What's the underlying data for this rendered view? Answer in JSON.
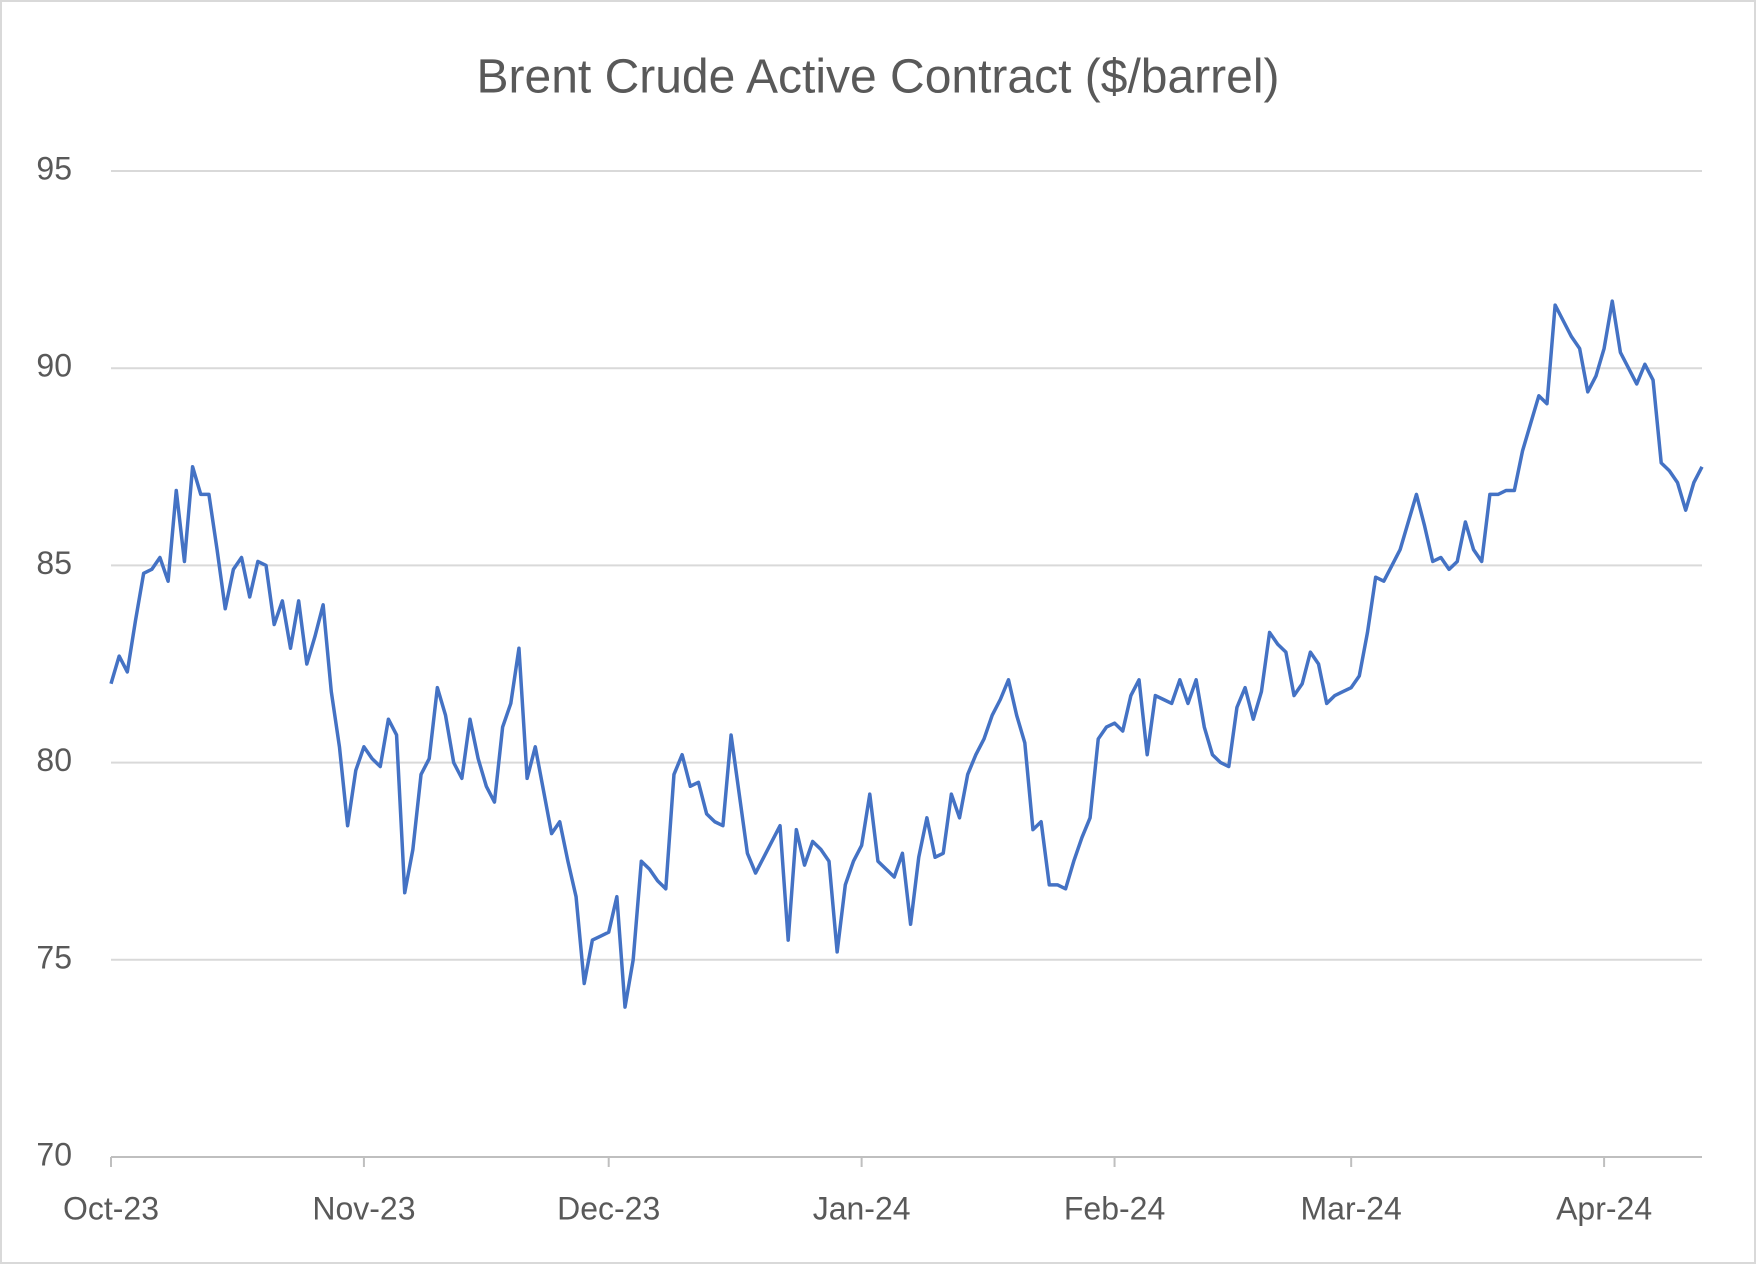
{
  "chart_data": {
    "type": "line",
    "title": "Brent Crude Active Contract ($/barrel)",
    "categories": [
      "Oct-23",
      null,
      null,
      null,
      null,
      null,
      null,
      null,
      null,
      null,
      null,
      null,
      null,
      null,
      null,
      null,
      null,
      null,
      null,
      null,
      null,
      null,
      null,
      null,
      null,
      null,
      null,
      null,
      null,
      null,
      null,
      "Nov-23",
      null,
      null,
      null,
      null,
      null,
      null,
      null,
      null,
      null,
      null,
      null,
      null,
      null,
      null,
      null,
      null,
      null,
      null,
      null,
      null,
      null,
      null,
      null,
      null,
      null,
      null,
      null,
      null,
      null,
      "Dec-23",
      null,
      null,
      null,
      null,
      null,
      null,
      null,
      null,
      null,
      null,
      null,
      null,
      null,
      null,
      null,
      null,
      null,
      null,
      null,
      null,
      null,
      null,
      null,
      null,
      null,
      null,
      null,
      null,
      null,
      null,
      "Jan-24",
      null,
      null,
      null,
      null,
      null,
      null,
      null,
      null,
      null,
      null,
      null,
      null,
      null,
      null,
      null,
      null,
      null,
      null,
      null,
      null,
      null,
      null,
      null,
      null,
      null,
      null,
      null,
      null,
      null,
      null,
      "Feb-24",
      null,
      null,
      null,
      null,
      null,
      null,
      null,
      null,
      null,
      null,
      null,
      null,
      null,
      null,
      null,
      null,
      null,
      null,
      null,
      null,
      null,
      null,
      null,
      null,
      null,
      null,
      null,
      null,
      "Mar-24",
      null,
      null,
      null,
      null,
      null,
      null,
      null,
      null,
      null,
      null,
      null,
      null,
      null,
      null,
      null,
      null,
      null,
      null,
      null,
      null,
      null,
      null,
      null,
      null,
      null,
      null,
      null,
      null,
      null,
      null,
      "Apr-24",
      null,
      null,
      null,
      null,
      null,
      null,
      null,
      null,
      null,
      null,
      null,
      null
    ],
    "values": [
      82.0,
      82.7,
      82.3,
      83.6,
      84.8,
      84.9,
      85.2,
      84.6,
      86.9,
      85.1,
      87.5,
      86.8,
      86.8,
      85.4,
      83.9,
      84.9,
      85.2,
      84.2,
      85.1,
      85.0,
      83.5,
      84.1,
      82.9,
      84.1,
      82.5,
      83.2,
      84.0,
      81.8,
      80.4,
      78.4,
      79.8,
      80.4,
      80.1,
      79.9,
      81.1,
      80.7,
      76.7,
      77.8,
      79.7,
      80.1,
      81.9,
      81.2,
      80.0,
      79.6,
      81.1,
      80.1,
      79.4,
      79.0,
      80.9,
      81.5,
      82.9,
      79.6,
      80.4,
      79.3,
      78.2,
      78.5,
      77.5,
      76.6,
      74.4,
      75.5,
      75.6,
      75.7,
      76.6,
      73.8,
      75.0,
      77.5,
      77.3,
      77.0,
      76.8,
      79.7,
      80.2,
      79.4,
      79.5,
      78.7,
      78.5,
      78.4,
      80.7,
      79.2,
      77.7,
      77.2,
      77.6,
      78.0,
      78.4,
      75.5,
      78.3,
      77.4,
      78.0,
      77.8,
      77.5,
      75.2,
      76.9,
      77.5,
      77.9,
      79.2,
      77.5,
      77.3,
      77.1,
      77.7,
      75.9,
      77.6,
      78.6,
      77.6,
      77.7,
      79.2,
      78.6,
      79.7,
      80.2,
      80.6,
      81.2,
      81.6,
      82.1,
      81.2,
      80.5,
      78.3,
      78.5,
      76.9,
      76.9,
      76.8,
      77.5,
      78.1,
      78.6,
      80.6,
      80.9,
      81.0,
      80.8,
      81.7,
      82.1,
      80.2,
      81.7,
      81.6,
      81.5,
      82.1,
      81.5,
      82.1,
      80.9,
      80.2,
      80.0,
      79.9,
      81.4,
      81.9,
      81.1,
      81.8,
      83.3,
      83.0,
      82.8,
      81.7,
      82.0,
      82.8,
      82.5,
      81.5,
      81.7,
      81.8,
      81.9,
      82.2,
      83.3,
      84.7,
      84.6,
      85.0,
      85.4,
      86.1,
      86.8,
      86.0,
      85.1,
      85.2,
      84.9,
      85.1,
      86.1,
      85.4,
      85.1,
      86.8,
      86.8,
      86.9,
      86.9,
      87.9,
      88.6,
      89.3,
      89.1,
      91.6,
      91.2,
      90.8,
      90.5,
      89.4,
      89.8,
      90.5,
      91.7,
      90.4,
      90.0,
      89.6,
      90.1,
      89.7,
      87.6,
      87.4,
      87.1,
      86.4,
      87.1,
      87.5
    ],
    "color": "#4472c4",
    "ylim": [
      70,
      95
    ],
    "yticks": [
      70,
      75,
      80,
      85,
      90,
      95
    ],
    "grid": true
  }
}
